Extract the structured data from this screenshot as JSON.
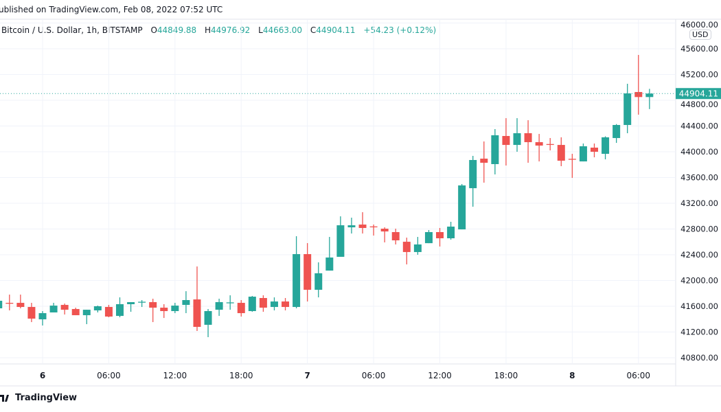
{
  "header": {
    "published": "ublished on TradingView.com, Feb 08, 2022 07:52 UTC",
    "symbol": "Bitcoin / U.S. Dollar, 1h, BITSTAMP",
    "open_label": "O",
    "open": "44849.88",
    "high_label": "H",
    "high": "44976.92",
    "low_label": "L",
    "low": "44663.00",
    "close_label": "C",
    "close": "44904.11",
    "change": "+54.23 (+0.12%)"
  },
  "footer": {
    "logo_text": "TradingView",
    "logo_icon": "tradingview-logo-icon"
  },
  "colors": {
    "up": "#26a69a",
    "down": "#ef5350",
    "grid": "#f0f3fa",
    "text": "#131722"
  },
  "chart_data": {
    "type": "candlestick",
    "currency": "USD",
    "last_price": "44904.11",
    "y_ticks": [
      "46000.00",
      "45600.00",
      "45200.00",
      "44800.00",
      "44400.00",
      "44000.00",
      "43600.00",
      "43200.00",
      "42800.00",
      "42400.00",
      "42000.00",
      "41600.00",
      "41200.00",
      "40800.00"
    ],
    "x_ticks": [
      {
        "label": "6",
        "hour": 0,
        "bold": true
      },
      {
        "label": "06:00",
        "hour": 6
      },
      {
        "label": "12:00",
        "hour": 12
      },
      {
        "label": "18:00",
        "hour": 18
      },
      {
        "label": "7",
        "hour": 24,
        "bold": true
      },
      {
        "label": "06:00",
        "hour": 30
      },
      {
        "label": "12:00",
        "hour": 36
      },
      {
        "label": "18:00",
        "hour": 42
      },
      {
        "label": "8",
        "hour": 48,
        "bold": true
      },
      {
        "label": "06:00",
        "hour": 54
      }
    ],
    "grid": true,
    "interval": "1h",
    "first_candle": "2022-02-05 20:00",
    "ohlc": [
      [
        41568,
        41706,
        41536,
        41685
      ],
      [
        41653,
        41781,
        41536,
        41642
      ],
      [
        41653,
        41781,
        41568,
        41589
      ],
      [
        41589,
        41653,
        41354,
        41408
      ],
      [
        41397,
        41525,
        41301,
        41493
      ],
      [
        41504,
        41653,
        41504,
        41610
      ],
      [
        41621,
        41642,
        41472,
        41546
      ],
      [
        41557,
        41578,
        41461,
        41461
      ],
      [
        41461,
        41546,
        41322,
        41546
      ],
      [
        41536,
        41610,
        41504,
        41600
      ],
      [
        41589,
        41621,
        41429,
        41440
      ],
      [
        41450,
        41738,
        41429,
        41632
      ],
      [
        41632,
        41664,
        41514,
        41664
      ],
      [
        41664,
        41696,
        41589,
        41670
      ],
      [
        41664,
        41717,
        41354,
        41578
      ],
      [
        41578,
        41632,
        41418,
        41525
      ],
      [
        41525,
        41653,
        41493,
        41610
      ],
      [
        41621,
        41834,
        41493,
        41696
      ],
      [
        41706,
        42218,
        41216,
        41280
      ],
      [
        41312,
        41557,
        41120,
        41525
      ],
      [
        41546,
        41717,
        41450,
        41664
      ],
      [
        41653,
        41770,
        41546,
        41660
      ],
      [
        41653,
        41696,
        41440,
        41493
      ],
      [
        41525,
        41760,
        41515,
        41749
      ],
      [
        41728,
        41770,
        41514,
        41578
      ],
      [
        41589,
        41738,
        41536,
        41674
      ],
      [
        41674,
        41728,
        41536,
        41589
      ],
      [
        41589,
        42688,
        41568,
        42410
      ],
      [
        42410,
        42581,
        41674,
        41856
      ],
      [
        41856,
        42282,
        41738,
        42112
      ],
      [
        42154,
        42677,
        42154,
        42357
      ],
      [
        42368,
        42997,
        42368,
        42858
      ],
      [
        42826,
        42976,
        42730,
        42858
      ],
      [
        42869,
        43061,
        42730,
        42816
      ],
      [
        42840,
        42869,
        42698,
        42837
      ],
      [
        42805,
        42826,
        42592,
        42762
      ],
      [
        42752,
        42805,
        42560,
        42624
      ],
      [
        42602,
        42666,
        42250,
        42442
      ],
      [
        42442,
        42677,
        42400,
        42560
      ],
      [
        42580,
        42784,
        42580,
        42752
      ],
      [
        42752,
        42816,
        42528,
        42656
      ],
      [
        42656,
        42912,
        42634,
        42837
      ],
      [
        42794,
        43498,
        42794,
        43477
      ],
      [
        43434,
        43936,
        43146,
        43872
      ],
      [
        43893,
        44160,
        43520,
        43829
      ],
      [
        43808,
        44352,
        43648,
        44256
      ],
      [
        44245,
        44522,
        43786,
        44106
      ],
      [
        44106,
        44522,
        44000,
        44288
      ],
      [
        44288,
        44490,
        43829,
        44149
      ],
      [
        44149,
        44277,
        43850,
        44096
      ],
      [
        44120,
        44213,
        44021,
        44117
      ],
      [
        44106,
        44224,
        43776,
        43861
      ],
      [
        43890,
        43968,
        43594,
        43882
      ],
      [
        43850,
        44128,
        43850,
        44085
      ],
      [
        44064,
        44128,
        43914,
        44000
      ],
      [
        43968,
        44240,
        43882,
        44224
      ],
      [
        44213,
        44430,
        44138,
        44416
      ],
      [
        44416,
        45056,
        44288,
        44906
      ],
      [
        44928,
        45504,
        44576,
        44849.88
      ],
      [
        44849.88,
        44976.92,
        44663,
        44904.11
      ]
    ]
  }
}
